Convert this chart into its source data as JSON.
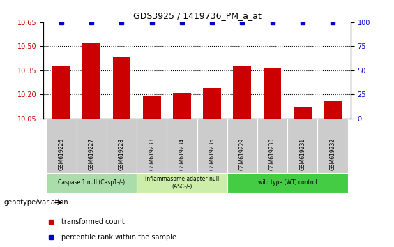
{
  "title": "GDS3925 / 1419736_PM_a_at",
  "samples": [
    "GSM619226",
    "GSM619227",
    "GSM619228",
    "GSM619233",
    "GSM619234",
    "GSM619235",
    "GSM619229",
    "GSM619230",
    "GSM619231",
    "GSM619232"
  ],
  "bar_values": [
    10.375,
    10.525,
    10.43,
    10.19,
    10.205,
    10.24,
    10.375,
    10.365,
    10.125,
    10.16
  ],
  "percentile_values": [
    100,
    100,
    100,
    100,
    100,
    100,
    100,
    100,
    100,
    100
  ],
  "bar_color": "#cc0000",
  "percentile_color": "#0000cc",
  "ylim_left": [
    10.05,
    10.65
  ],
  "ylim_right": [
    0,
    100
  ],
  "yticks_left": [
    10.05,
    10.2,
    10.35,
    10.5,
    10.65
  ],
  "yticks_right": [
    0,
    25,
    50,
    75,
    100
  ],
  "groups": [
    {
      "label": "Caspase 1 null (Casp1-/-)",
      "start": 0,
      "end": 3,
      "color": "#aaddaa"
    },
    {
      "label": "inflammasome adapter null\n(ASC-/-)",
      "start": 3,
      "end": 6,
      "color": "#cceeaa"
    },
    {
      "label": "wild type (WT) control",
      "start": 6,
      "end": 10,
      "color": "#44cc44"
    }
  ],
  "xlabel_label": "genotype/variation",
  "legend_items": [
    {
      "color": "#cc0000",
      "label": "transformed count"
    },
    {
      "color": "#0000cc",
      "label": "percentile rank within the sample"
    }
  ],
  "grid_color": "black",
  "sample_area_color": "#cccccc",
  "bar_width": 0.6
}
